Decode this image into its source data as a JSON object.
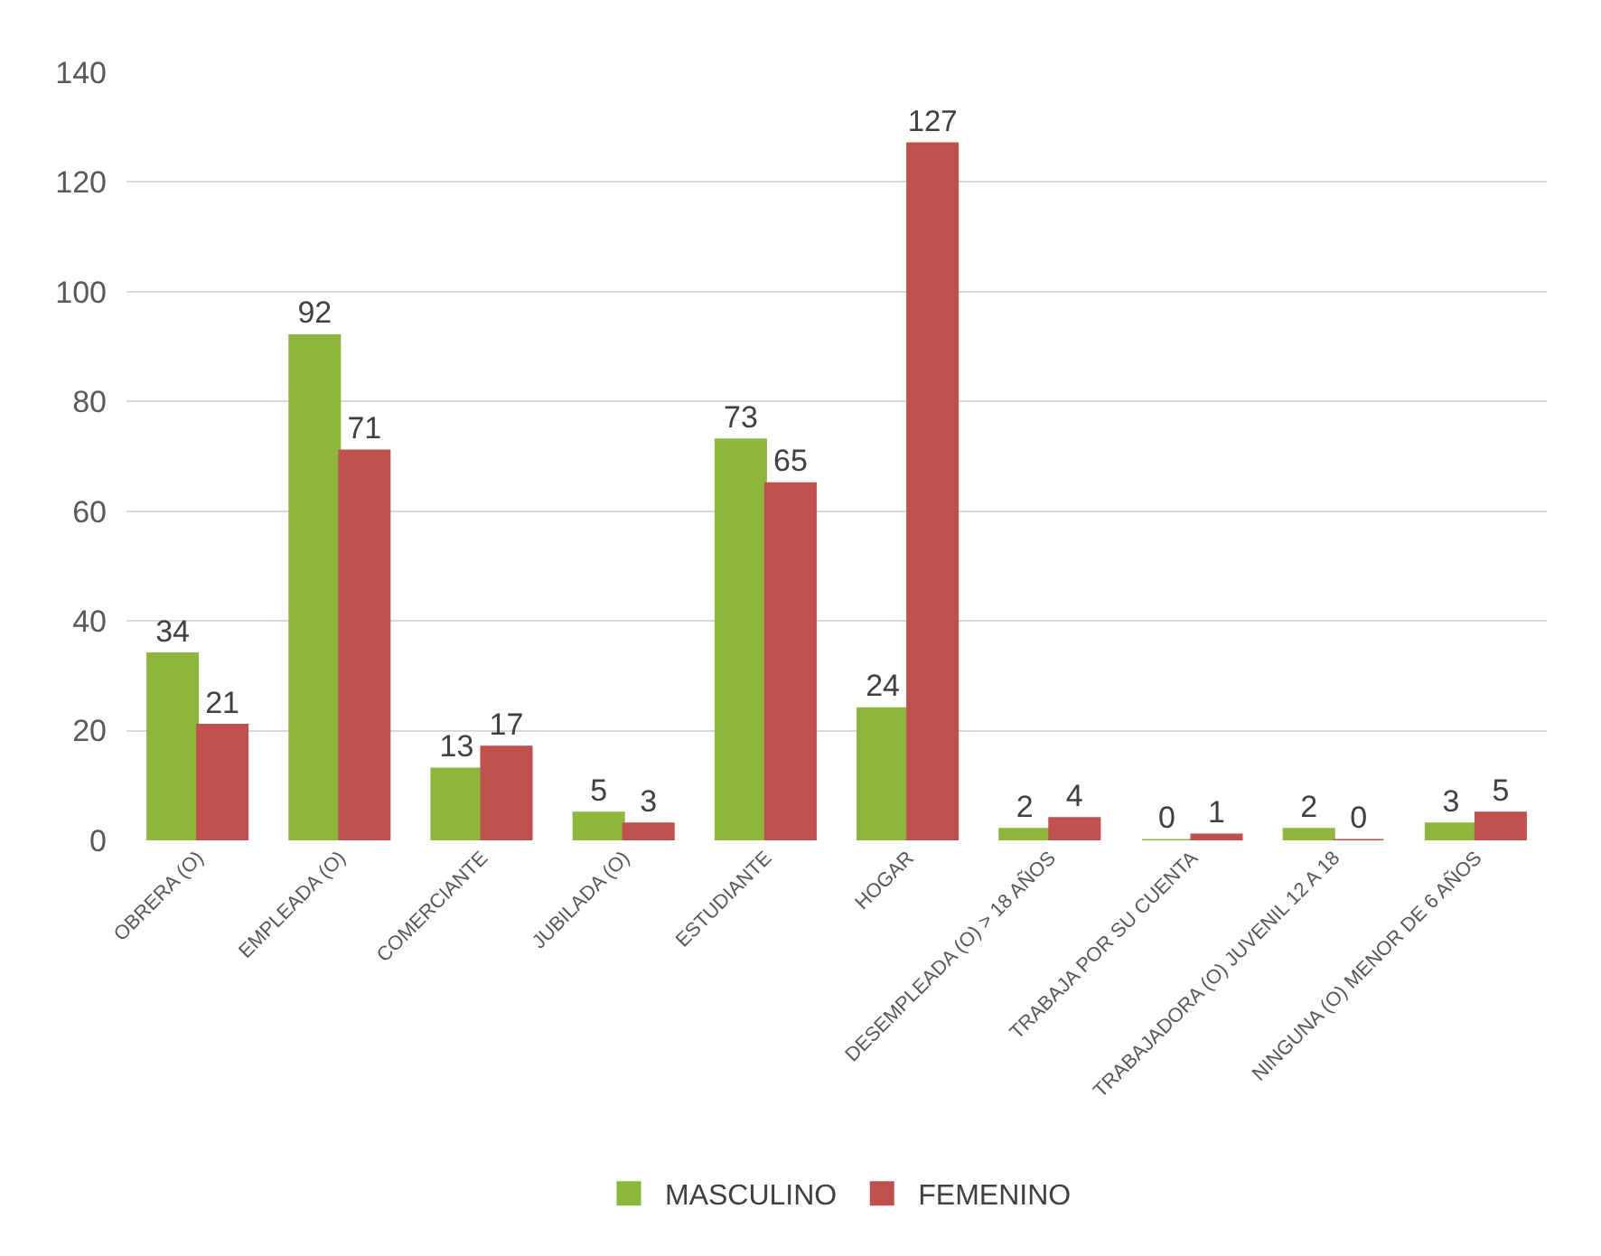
{
  "chart_data": {
    "type": "bar",
    "categories": [
      "OBRERA (O)",
      "EMPLEADA (O)",
      "COMERCIANTE",
      "JUBILADA (O)",
      "ESTUDIANTE",
      "HOGAR",
      "DESEMPLEADA (O) > 18 AÑOS",
      "TRABAJA POR SU CUENTA",
      "TRABAJADORA (O) JUVENIL 12 A 18",
      "NINGUNA (O) MENOR DE 6 AÑOS"
    ],
    "series": [
      {
        "name": "MASCULINO",
        "color": "#8cb63c",
        "values": [
          34,
          92,
          13,
          5,
          73,
          24,
          2,
          0,
          2,
          3
        ]
      },
      {
        "name": "FEMENINO",
        "color": "#c0504d",
        "values": [
          21,
          71,
          17,
          3,
          65,
          127,
          4,
          1,
          0,
          5
        ]
      }
    ],
    "ylim": [
      0,
      140
    ],
    "yticks": [
      0,
      20,
      40,
      60,
      80,
      100,
      120,
      140
    ],
    "grid": "y",
    "legend": "bottom",
    "data_labels": true
  }
}
